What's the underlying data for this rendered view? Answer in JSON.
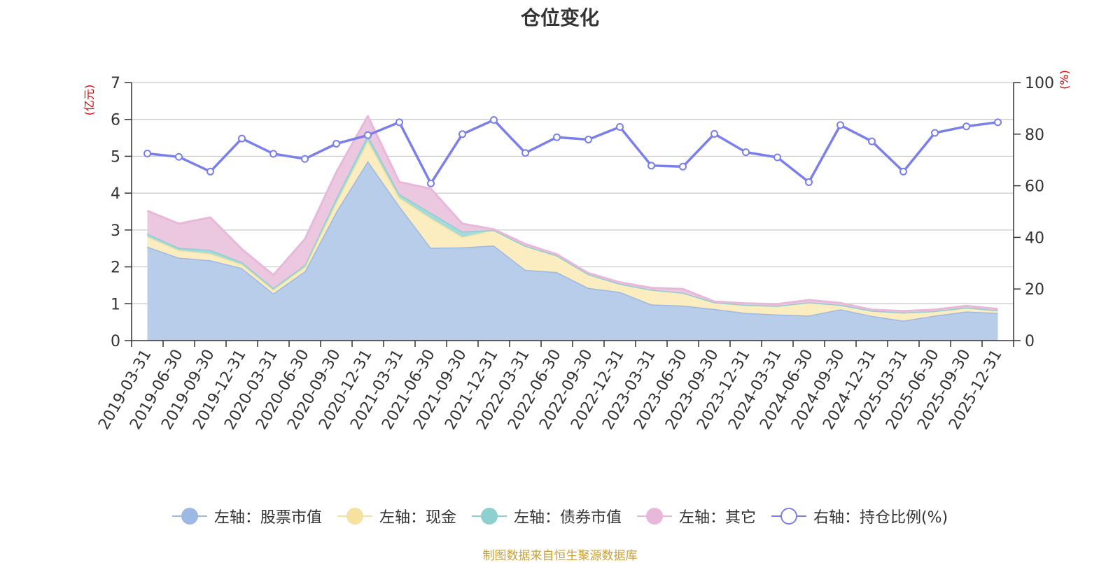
{
  "title": "仓位变化",
  "source_note": "制图数据来自恒生聚源数据库",
  "chart_data": {
    "type": "area",
    "title": "仓位变化",
    "x": [
      "2019-03-31",
      "2019-06-30",
      "2019-09-30",
      "2019-12-31",
      "2020-03-31",
      "2020-06-30",
      "2020-09-30",
      "2020-12-31",
      "2021-03-31",
      "2021-06-30",
      "2021-09-30",
      "2021-12-31",
      "2022-03-31",
      "2022-06-30",
      "2022-09-30",
      "2022-12-31",
      "2023-03-31",
      "2023-06-30",
      "2023-09-30",
      "2023-12-31",
      "2024-03-31",
      "2024-06-30",
      "2024-09-30",
      "2024-12-31",
      "2025-03-31",
      "2025-06-30",
      "2025-09-30",
      "2025-12-31"
    ],
    "left_axis": {
      "label": "(亿元)",
      "range": [
        0,
        7
      ],
      "ticks": [
        "0",
        "1",
        "2",
        "3",
        "4",
        "5",
        "6",
        "7"
      ]
    },
    "right_axis": {
      "label": "(%)",
      "range": [
        0,
        100
      ],
      "ticks": [
        "0",
        "20",
        "40",
        "60",
        "80",
        "100"
      ]
    },
    "grid": true,
    "legend_position": "bottom",
    "series": [
      {
        "name": "左轴：股票市值",
        "axis": "left",
        "stacked": true,
        "color": "#9db8e2",
        "fill": "#b7cdea",
        "values": [
          2.55,
          2.25,
          2.18,
          1.97,
          1.28,
          1.88,
          3.5,
          4.87,
          3.65,
          2.52,
          2.53,
          2.58,
          1.92,
          1.86,
          1.43,
          1.32,
          0.98,
          0.95,
          0.86,
          0.75,
          0.71,
          0.68,
          0.85,
          0.67,
          0.54,
          0.68,
          0.79,
          0.75
        ]
      },
      {
        "name": "左轴：现金",
        "axis": "left",
        "stacked": true,
        "color": "#f5e2a0",
        "fill": "#fbedc0",
        "values": [
          0.27,
          0.2,
          0.18,
          0.1,
          0.1,
          0.12,
          0.25,
          0.55,
          0.23,
          0.8,
          0.28,
          0.42,
          0.65,
          0.45,
          0.37,
          0.22,
          0.4,
          0.35,
          0.18,
          0.22,
          0.23,
          0.36,
          0.12,
          0.14,
          0.22,
          0.12,
          0.11,
          0.07
        ]
      },
      {
        "name": "左轴：债券市值",
        "axis": "left",
        "stacked": true,
        "color": "#8ecfd0",
        "fill": "#a5dadb",
        "values": [
          0.08,
          0.07,
          0.1,
          0.06,
          0.05,
          0.05,
          0.12,
          0.15,
          0.1,
          0.15,
          0.15,
          0,
          0,
          0,
          0,
          0,
          0,
          0,
          0,
          0,
          0,
          0,
          0,
          0,
          0,
          0,
          0,
          0
        ]
      },
      {
        "name": "左轴：其它",
        "axis": "left",
        "stacked": true,
        "color": "#e8b8da",
        "fill": "#ecc7e0",
        "values": [
          0.62,
          0.65,
          0.88,
          0.35,
          0.35,
          0.7,
          0.7,
          0.52,
          0.32,
          0.65,
          0.21,
          0.02,
          0.05,
          0.03,
          0.03,
          0.04,
          0.05,
          0.1,
          0.02,
          0.04,
          0.05,
          0.06,
          0.05,
          0.03,
          0.04,
          0.04,
          0.04,
          0.04
        ]
      },
      {
        "name": "右轴：持仓比例(%)",
        "axis": "right",
        "stacked": false,
        "color": "#7b7fec",
        "values": [
          72.5,
          71.2,
          65.5,
          78.3,
          72.4,
          70.4,
          76.3,
          79.6,
          84.6,
          60.9,
          80.0,
          85.5,
          72.7,
          78.8,
          77.9,
          82.8,
          67.8,
          67.4,
          80.1,
          73.0,
          71.0,
          61.4,
          83.5,
          77.2,
          65.5,
          80.5,
          83.0,
          84.6
        ]
      }
    ]
  }
}
